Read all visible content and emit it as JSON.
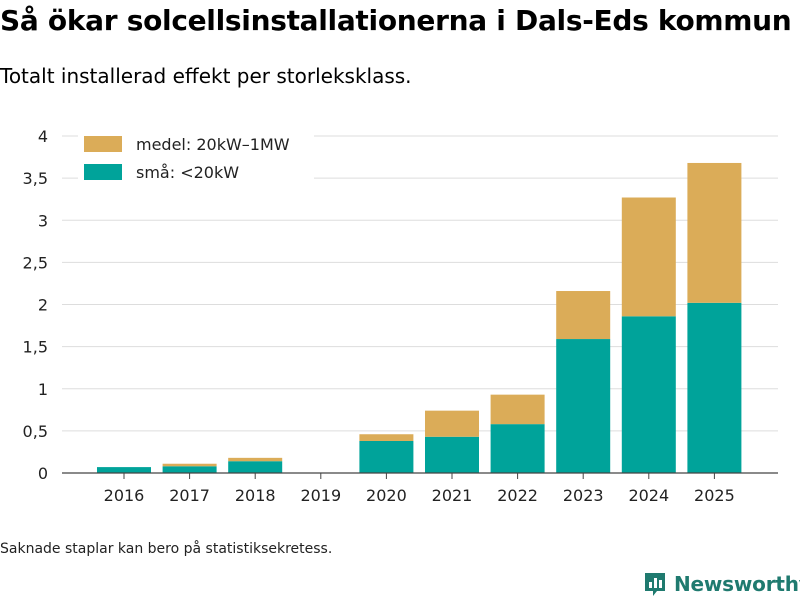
{
  "title": "Så ökar solcellsinstallationerna i Dals-Eds kommun",
  "subtitle": "Totalt installerad effekt per storleksklass.",
  "footnote": "Saknade staplar kan bero på statistiksekretess.",
  "brand": "Newsworthy",
  "colors": {
    "small": "#00a39a",
    "medium": "#dbac58",
    "grid": "#dddddd",
    "axis": "#444444",
    "brand": "#1f7a6f"
  },
  "chart_data": {
    "type": "bar",
    "stacked": true,
    "categories": [
      "2016",
      "2017",
      "2018",
      "2019",
      "2020",
      "2021",
      "2022",
      "2023",
      "2024",
      "2025"
    ],
    "series": [
      {
        "name": "små: <20kW",
        "color": "#00a39a",
        "values": [
          0.07,
          0.08,
          0.14,
          0,
          0.38,
          0.43,
          0.58,
          1.59,
          1.86,
          2.02
        ]
      },
      {
        "name": "medel: 20kW–1MW",
        "color": "#dbac58",
        "values": [
          0,
          0.03,
          0.04,
          0,
          0.08,
          0.31,
          0.35,
          0.57,
          1.41,
          1.66
        ]
      }
    ],
    "legend": [
      "medel: 20kW–1MW",
      "små: <20kW"
    ],
    "ylim": [
      0,
      4
    ],
    "yticks": [
      0,
      0.5,
      1,
      1.5,
      2,
      2.5,
      3,
      3.5,
      4
    ],
    "ytick_labels": [
      "0",
      "0,5",
      "1",
      "1,5",
      "2",
      "2,5",
      "3",
      "3,5",
      "4"
    ],
    "legend_position": "top-left",
    "grid": true
  }
}
